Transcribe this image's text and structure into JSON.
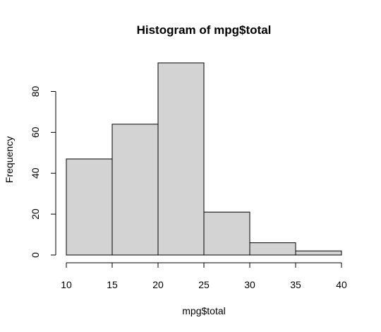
{
  "chart_data": {
    "type": "bar",
    "title": "Histogram of mpg$total",
    "xlabel": "mpg$total",
    "ylabel": "Frequency",
    "bins": [
      {
        "from": 10,
        "to": 15,
        "count": 47
      },
      {
        "from": 15,
        "to": 20,
        "count": 64
      },
      {
        "from": 20,
        "to": 25,
        "count": 94
      },
      {
        "from": 25,
        "to": 30,
        "count": 21
      },
      {
        "from": 30,
        "to": 35,
        "count": 6
      },
      {
        "from": 35,
        "to": 40,
        "count": 2
      }
    ],
    "xlim": [
      10,
      40
    ],
    "ylim": [
      0,
      94
    ],
    "x_ticks": [
      10,
      15,
      20,
      25,
      30,
      35,
      40
    ],
    "y_ticks": [
      0,
      20,
      40,
      60,
      80
    ],
    "bar_color": "#d3d3d3",
    "grid": false,
    "legend": "none"
  }
}
